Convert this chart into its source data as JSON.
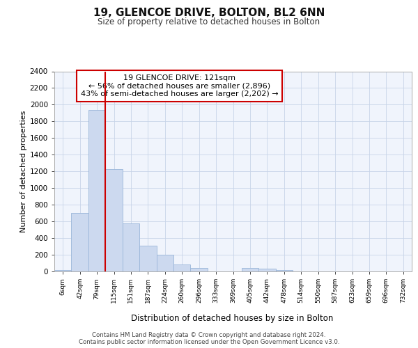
{
  "title": "19, GLENCOE DRIVE, BOLTON, BL2 6NN",
  "subtitle": "Size of property relative to detached houses in Bolton",
  "xlabel": "Distribution of detached houses by size in Bolton",
  "ylabel": "Number of detached properties",
  "categories": [
    "6sqm",
    "42sqm",
    "79sqm",
    "115sqm",
    "151sqm",
    "187sqm",
    "224sqm",
    "260sqm",
    "296sqm",
    "333sqm",
    "369sqm",
    "405sqm",
    "442sqm",
    "478sqm",
    "514sqm",
    "550sqm",
    "587sqm",
    "623sqm",
    "659sqm",
    "696sqm",
    "732sqm"
  ],
  "values": [
    15,
    700,
    1940,
    1230,
    575,
    305,
    200,
    80,
    45,
    0,
    0,
    38,
    30,
    15,
    0,
    0,
    0,
    0,
    0,
    0,
    0
  ],
  "bar_color": "#ccd9ef",
  "bar_edge_color": "#9ab5d9",
  "vline_color": "#cc0000",
  "annotation_text": "19 GLENCOE DRIVE: 121sqm\n← 56% of detached houses are smaller (2,896)\n43% of semi-detached houses are larger (2,202) →",
  "annotation_box_color": "#ffffff",
  "annotation_box_edge": "#cc0000",
  "ylim": [
    0,
    2400
  ],
  "yticks": [
    0,
    200,
    400,
    600,
    800,
    1000,
    1200,
    1400,
    1600,
    1800,
    2000,
    2200,
    2400
  ],
  "footer1": "Contains HM Land Registry data © Crown copyright and database right 2024.",
  "footer2": "Contains public sector information licensed under the Open Government Licence v3.0.",
  "plot_bg_color": "#f0f4fc"
}
